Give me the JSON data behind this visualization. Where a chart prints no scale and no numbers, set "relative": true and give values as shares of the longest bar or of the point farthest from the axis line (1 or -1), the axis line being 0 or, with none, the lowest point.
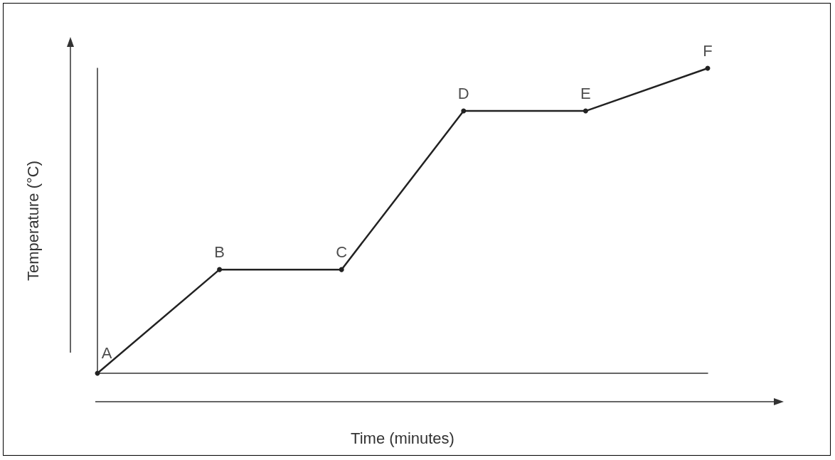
{
  "chart_data": {
    "type": "line",
    "relative": true,
    "xlabel": "Time (minutes)",
    "ylabel": "Temperature (°C)",
    "categories": [
      null,
      null,
      null,
      null,
      null,
      null
    ],
    "series": [
      {
        "color": "#222222",
        "values": [
          0,
          0.34,
          0.34,
          0.86,
          0.86,
          1
        ]
      }
    ],
    "annotations": [
      "A",
      {
        "text": "B",
        "y": 0.34
      },
      {
        "text": "C",
        "y": 0.34
      },
      {
        "text": "D",
        "y": 0.86
      },
      {
        "text": "E",
        "y": 0.86
      },
      {
        "text": "F",
        "y": 1
      }
    ],
    "grid": false,
    "marker": "circle",
    "line_style": "solid"
  }
}
